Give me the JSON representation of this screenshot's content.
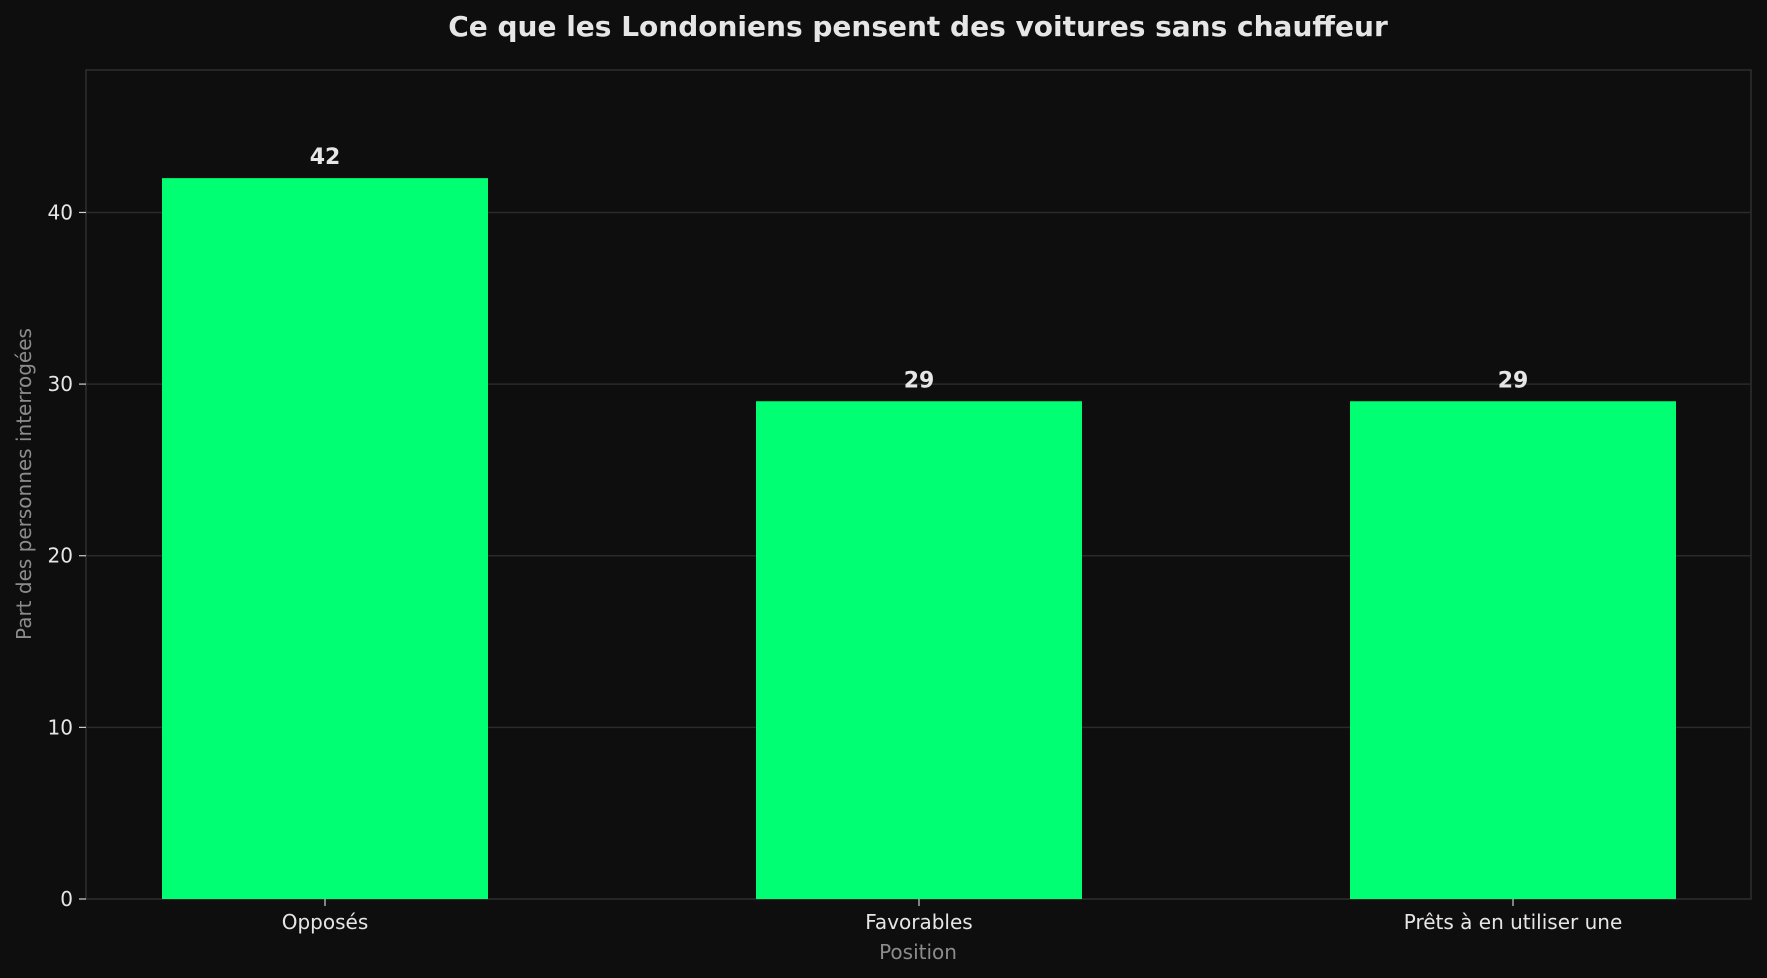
{
  "chart_data": {
    "type": "bar",
    "title": "Ce que les Londoniens pensent des voitures sans chauffeur",
    "xlabel": "Position",
    "ylabel": "Part des personnes interrogées",
    "categories": [
      "Opposés",
      "Favorables",
      "Prêts à en utiliser une"
    ],
    "values": [
      42,
      29,
      29
    ],
    "data_labels": [
      "42",
      "29",
      "29"
    ],
    "ylim": [
      0,
      48.3
    ],
    "yticks": [
      0,
      10,
      20,
      30,
      40
    ],
    "ytick_labels": [
      "0",
      "10",
      "20",
      "30",
      "40"
    ],
    "grid": true,
    "legend": "none",
    "colors": {
      "background": "#0e0e0e",
      "bar": "#00ff73",
      "grid": "#2a2a2a",
      "axis": "#333333",
      "text": "#e6e6e6",
      "muted_text": "#8c8c8c"
    }
  }
}
